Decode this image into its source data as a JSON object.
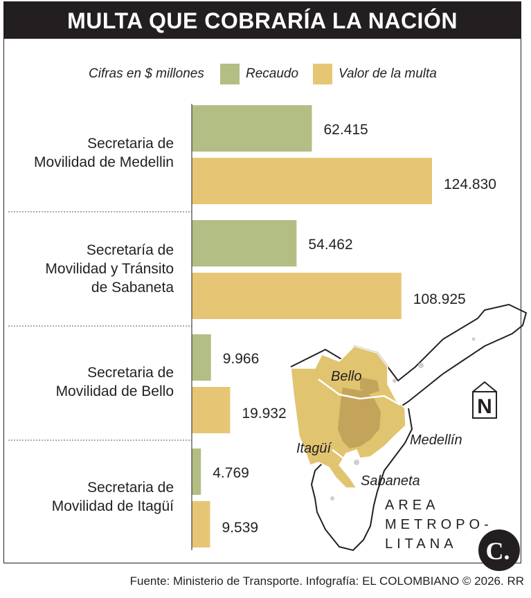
{
  "title": "MULTA QUE COBRARÍA LA NACIÓN",
  "legend": {
    "unit_note": "Cifras en $ millones",
    "recaudo": "Recaudo",
    "valor": "Valor de la multa"
  },
  "colors": {
    "recaudo": "#b3be84",
    "valor": "#e6c675",
    "dark": "#231f20",
    "map_fill": "#e0c470",
    "map_urban": "#c3a45a"
  },
  "chart_data": {
    "type": "bar",
    "orientation": "horizontal",
    "categories": [
      "Secretaria de Movilidad de Medellin",
      "Secretaría de Movilidad y Tránsito de Sabaneta",
      "Secretaria de Movilidad de Bello",
      "Secretaria de Movilidad de Itagüí"
    ],
    "category_lines": [
      [
        "Secretaria de",
        "Movilidad de Medellin"
      ],
      [
        "Secretaría de",
        "Movilidad y Tránsito",
        "de Sabaneta"
      ],
      [
        "Secretaria de",
        "Movilidad de Bello"
      ],
      [
        "Secretaria de",
        "Movilidad de Itagüí"
      ]
    ],
    "series": [
      {
        "name": "Recaudo",
        "values": [
          62415,
          54462,
          9966,
          4769
        ],
        "labels": [
          "62.415",
          "54.462",
          "9.966",
          "4.769"
        ]
      },
      {
        "name": "Valor de la multa",
        "values": [
          124830,
          108925,
          19932,
          9539
        ],
        "labels": [
          "124.830",
          "108.925",
          "19.932",
          "9.539"
        ]
      }
    ],
    "unit": "Cifras en $ millones",
    "xlim": [
      0,
      124830
    ],
    "grid": false,
    "legend_position": "top"
  },
  "map": {
    "labels": [
      "Bello",
      "Medellín",
      "Itagüí",
      "Sabaneta"
    ],
    "area_label": [
      "AREA",
      "METROPO-",
      "LITANA"
    ],
    "north": "N"
  },
  "logo_text": "C.",
  "footer": "Fuente: Ministerio de Transporte. Infografía: EL COLOMBIANO © 2026. RR"
}
